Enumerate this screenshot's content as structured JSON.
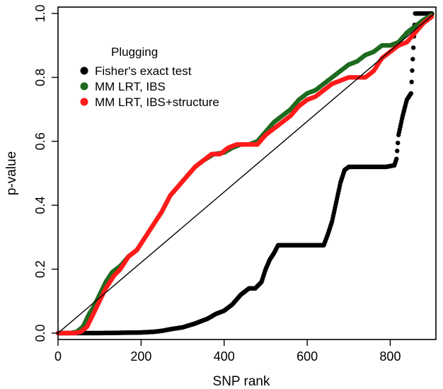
{
  "chart_data": {
    "type": "scatter",
    "title": "",
    "xlabel": "SNP rank",
    "ylabel": "p-value",
    "xlim": [
      0,
      910
    ],
    "ylim": [
      -0.02,
      1.02
    ],
    "x_ticks": [
      0,
      200,
      400,
      600,
      800
    ],
    "y_ticks": [
      0.0,
      0.2,
      0.4,
      0.6,
      0.8,
      1.0
    ],
    "x_tick_labels": [
      "0",
      "200",
      "400",
      "600",
      "800"
    ],
    "y_tick_labels": [
      "0.0",
      "0.2",
      "0.4",
      "0.6",
      "0.8",
      "1.0"
    ],
    "legend": {
      "title": "Plugging",
      "placement": "top-left",
      "entries": [
        "Fisher's exact test",
        "MM LRT, IBS",
        "MM LRT, IBS+structure"
      ]
    },
    "grid": false,
    "reference_line": {
      "from": [
        0,
        0
      ],
      "to": [
        906,
        1.0
      ],
      "color": "#000000"
    },
    "series": [
      {
        "name": "Fisher's exact test",
        "color": "#000000",
        "points": [
          [
            0,
            0
          ],
          [
            100,
            0
          ],
          [
            150,
            0.001
          ],
          [
            200,
            0.002
          ],
          [
            230,
            0.004
          ],
          [
            250,
            0.007
          ],
          [
            270,
            0.012
          ],
          [
            300,
            0.018
          ],
          [
            330,
            0.03
          ],
          [
            360,
            0.045
          ],
          [
            380,
            0.06
          ],
          [
            400,
            0.07
          ],
          [
            420,
            0.09
          ],
          [
            440,
            0.12
          ],
          [
            460,
            0.14
          ],
          [
            475,
            0.14
          ],
          [
            490,
            0.16
          ],
          [
            500,
            0.2
          ],
          [
            510,
            0.23
          ],
          [
            520,
            0.25
          ],
          [
            530,
            0.275
          ],
          [
            560,
            0.275
          ],
          [
            600,
            0.275
          ],
          [
            640,
            0.275
          ],
          [
            650,
            0.31
          ],
          [
            660,
            0.35
          ],
          [
            670,
            0.41
          ],
          [
            680,
            0.47
          ],
          [
            690,
            0.51
          ],
          [
            700,
            0.52
          ],
          [
            730,
            0.52
          ],
          [
            760,
            0.52
          ],
          [
            790,
            0.52
          ],
          [
            810,
            0.525
          ],
          [
            815,
            0.545
          ],
          [
            820,
            0.62
          ],
          [
            830,
            0.68
          ],
          [
            840,
            0.73
          ],
          [
            850,
            0.75
          ],
          [
            860,
            1.0
          ],
          [
            900,
            1.0
          ]
        ]
      },
      {
        "name": "MM LRT, IBS",
        "color": "#1f6b1f",
        "points": [
          [
            0,
            0
          ],
          [
            30,
            0
          ],
          [
            45,
            0.004
          ],
          [
            60,
            0.02
          ],
          [
            75,
            0.06
          ],
          [
            85,
            0.08
          ],
          [
            100,
            0.12
          ],
          [
            115,
            0.16
          ],
          [
            130,
            0.19
          ],
          [
            150,
            0.21
          ],
          [
            170,
            0.24
          ],
          [
            190,
            0.26
          ],
          [
            210,
            0.3
          ],
          [
            230,
            0.34
          ],
          [
            250,
            0.38
          ],
          [
            270,
            0.43
          ],
          [
            290,
            0.46
          ],
          [
            310,
            0.49
          ],
          [
            330,
            0.52
          ],
          [
            350,
            0.54
          ],
          [
            375,
            0.56
          ],
          [
            400,
            0.565
          ],
          [
            420,
            0.58
          ],
          [
            440,
            0.59
          ],
          [
            460,
            0.59
          ],
          [
            480,
            0.6
          ],
          [
            500,
            0.63
          ],
          [
            520,
            0.66
          ],
          [
            540,
            0.68
          ],
          [
            560,
            0.7
          ],
          [
            580,
            0.73
          ],
          [
            600,
            0.75
          ],
          [
            620,
            0.76
          ],
          [
            640,
            0.78
          ],
          [
            660,
            0.8
          ],
          [
            680,
            0.82
          ],
          [
            700,
            0.84
          ],
          [
            720,
            0.85
          ],
          [
            740,
            0.87
          ],
          [
            760,
            0.88
          ],
          [
            780,
            0.9
          ],
          [
            800,
            0.9
          ],
          [
            820,
            0.91
          ],
          [
            840,
            0.94
          ],
          [
            860,
            0.96
          ],
          [
            880,
            0.98
          ],
          [
            900,
            0.995
          ]
        ]
      },
      {
        "name": "MM LRT, IBS+structure",
        "color": "#ff1a1a",
        "points": [
          [
            0,
            0
          ],
          [
            40,
            0
          ],
          [
            55,
            0.004
          ],
          [
            70,
            0.02
          ],
          [
            85,
            0.06
          ],
          [
            100,
            0.1
          ],
          [
            115,
            0.14
          ],
          [
            125,
            0.16
          ],
          [
            135,
            0.18
          ],
          [
            150,
            0.2
          ],
          [
            170,
            0.24
          ],
          [
            190,
            0.26
          ],
          [
            210,
            0.3
          ],
          [
            230,
            0.34
          ],
          [
            250,
            0.38
          ],
          [
            270,
            0.43
          ],
          [
            290,
            0.46
          ],
          [
            310,
            0.49
          ],
          [
            330,
            0.52
          ],
          [
            350,
            0.54
          ],
          [
            370,
            0.56
          ],
          [
            390,
            0.56
          ],
          [
            410,
            0.58
          ],
          [
            430,
            0.59
          ],
          [
            460,
            0.59
          ],
          [
            480,
            0.59
          ],
          [
            500,
            0.62
          ],
          [
            520,
            0.64
          ],
          [
            540,
            0.66
          ],
          [
            560,
            0.68
          ],
          [
            580,
            0.71
          ],
          [
            600,
            0.73
          ],
          [
            620,
            0.74
          ],
          [
            640,
            0.76
          ],
          [
            660,
            0.78
          ],
          [
            680,
            0.79
          ],
          [
            700,
            0.8
          ],
          [
            720,
            0.8
          ],
          [
            740,
            0.8
          ],
          [
            760,
            0.82
          ],
          [
            780,
            0.86
          ],
          [
            800,
            0.88
          ],
          [
            820,
            0.9
          ],
          [
            840,
            0.91
          ],
          [
            860,
            0.94
          ],
          [
            880,
            0.97
          ],
          [
            900,
            0.99
          ]
        ]
      }
    ]
  }
}
